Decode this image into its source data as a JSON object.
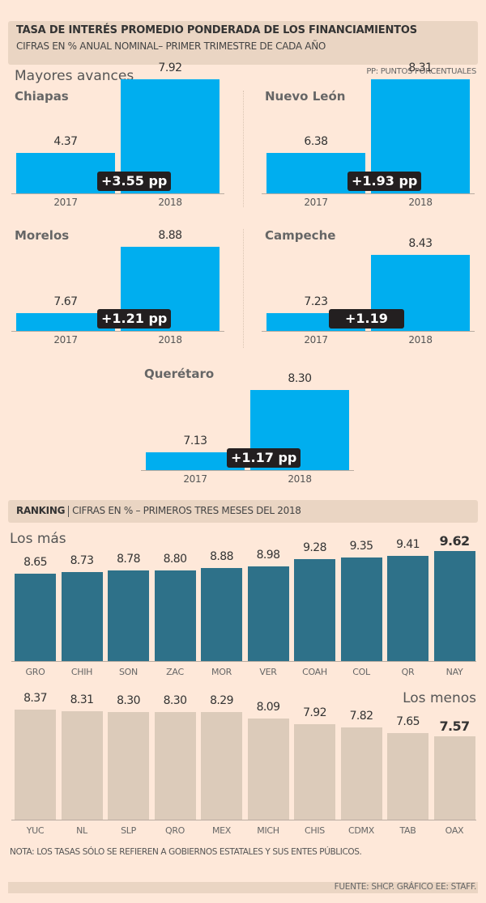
{
  "header": {
    "title": "TASA DE INTERÉS PROMEDIO PONDERADA DE LOS FINANCIAMIENTOS",
    "subtitle": "CIFRAS EN % ANUAL NOMINAL– PRIMER TRIMESTRE DE CADA AÑO"
  },
  "section_title": "Mayores avances",
  "pp_note": "PP: PUNTOS PORCENTUALES",
  "colors": {
    "background": "#fee8d9",
    "header_band": "#ead5c3",
    "mini_bar": "#00aeef",
    "top_bar": "#2e7189",
    "bottom_bar": "#dccbba",
    "delta_badge": "#231f20"
  },
  "chart_data": [
    {
      "type": "bar",
      "title": "Chiapas",
      "categories": [
        "2017",
        "2018"
      ],
      "values": [
        4.37,
        7.92
      ],
      "value_labels": [
        "4.37",
        "7.92"
      ],
      "annotation": "+3.55 pp"
    },
    {
      "type": "bar",
      "title": "Nuevo León",
      "categories": [
        "2017",
        "2018"
      ],
      "values": [
        6.38,
        8.31
      ],
      "value_labels": [
        "6.38",
        "8.31"
      ],
      "annotation": "+1.93 pp"
    },
    {
      "type": "bar",
      "title": "Morelos",
      "categories": [
        "2017",
        "2018"
      ],
      "values": [
        7.67,
        8.88
      ],
      "value_labels": [
        "7.67",
        "8.88"
      ],
      "annotation": "+1.21 pp"
    },
    {
      "type": "bar",
      "title": "Campeche",
      "categories": [
        "2017",
        "2018"
      ],
      "values": [
        7.23,
        8.43
      ],
      "value_labels": [
        "7.23",
        "8.43"
      ],
      "annotation": "+1.19"
    },
    {
      "type": "bar",
      "title": "Querétaro",
      "categories": [
        "2017",
        "2018"
      ],
      "values": [
        7.13,
        8.3
      ],
      "value_labels": [
        "7.13",
        "8.30"
      ],
      "annotation": "+1.17 pp"
    },
    {
      "type": "bar",
      "title": "Los más",
      "categories": [
        "GRO",
        "CHIH",
        "SON",
        "ZAC",
        "MOR",
        "VER",
        "COAH",
        "COL",
        "QR",
        "NAY"
      ],
      "values": [
        8.65,
        8.73,
        8.78,
        8.8,
        8.88,
        8.98,
        9.28,
        9.35,
        9.41,
        9.62
      ],
      "value_labels": [
        "8.65",
        "8.73",
        "8.78",
        "8.80",
        "8.88",
        "8.98",
        "9.28",
        "9.35",
        "9.41",
        "9.62"
      ],
      "highlight": "NAY"
    },
    {
      "type": "bar",
      "title": "Los menos",
      "categories": [
        "YUC",
        "NL",
        "SLP",
        "QRO",
        "MEX",
        "MICH",
        "CHIS",
        "CDMX",
        "TAB",
        "OAX"
      ],
      "values": [
        8.37,
        8.31,
        8.3,
        8.3,
        8.29,
        8.09,
        7.92,
        7.82,
        7.65,
        7.57
      ],
      "value_labels": [
        "8.37",
        "8.31",
        "8.30",
        "8.30",
        "8.29",
        "8.09",
        "7.92",
        "7.82",
        "7.65",
        "7.57"
      ],
      "highlight": "OAX"
    }
  ],
  "ranking": {
    "label": "RANKING",
    "subtitle": "CIFRAS EN % – PRIMEROS TRES MESES DEL 2018",
    "top_title": "Los más",
    "bottom_title": "Los menos"
  },
  "note": "NOTA: LOS TASAS SÓLO SE REFIEREN A GOBIERNOS ESTATALES Y SUS ENTES PÚBLICOS.",
  "source": "FUENTE: SHCP. GRÁFICO EE: STAFF."
}
